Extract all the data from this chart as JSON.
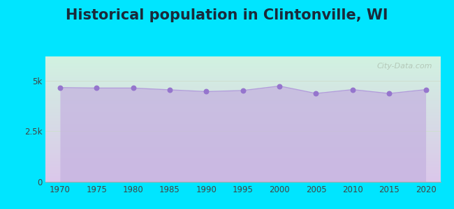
{
  "title": "Historical population in Clintonville, WI",
  "title_fontsize": 15,
  "title_fontweight": "bold",
  "title_color": "#1a2a3a",
  "background_color": "#00e5ff",
  "plot_bg_topleft": "#d4f0dc",
  "plot_bg_bottomright": "#d9c8e8",
  "years": [
    1970,
    1975,
    1980,
    1985,
    1990,
    1995,
    2000,
    2005,
    2010,
    2015,
    2020
  ],
  "population": [
    4659,
    4637,
    4637,
    4548,
    4462,
    4516,
    4736,
    4370,
    4559,
    4369,
    4559
  ],
  "line_color": "#b39ddb",
  "fill_color": "#c5b3e0",
  "fill_alpha": 0.75,
  "marker_color": "#9575cd",
  "marker_size": 22,
  "yticks": [
    0,
    2500,
    5000
  ],
  "ytick_labels": [
    "0",
    "2.5k",
    "5k"
  ],
  "ylim": [
    0,
    6200
  ],
  "xlim": [
    1968,
    2022
  ],
  "watermark_text": "City-Data.com",
  "grid_color": "#ccddcc",
  "tick_color": "#444444",
  "tick_fontsize": 8.5
}
